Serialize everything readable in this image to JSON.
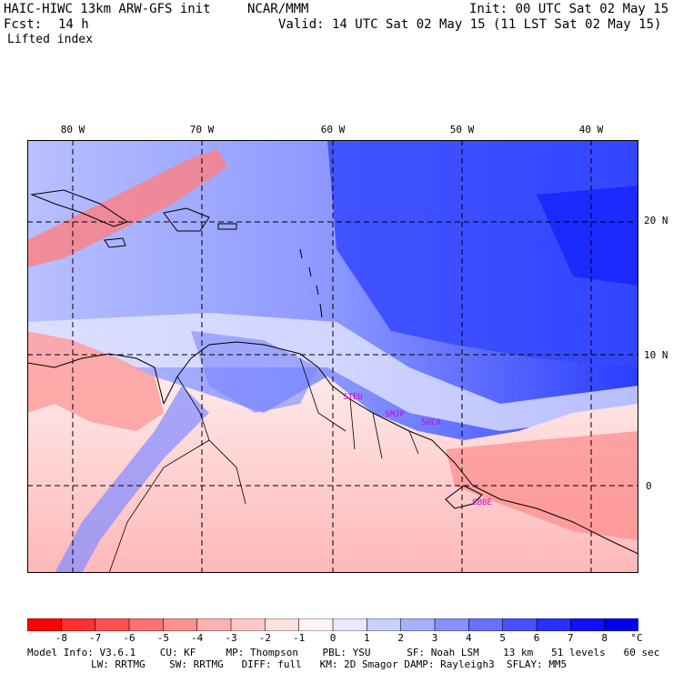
{
  "header": {
    "model_title": "HAIC-HIWC 13km ARW-GFS init",
    "center": "NCAR/MMM",
    "init": "Init: 00 UTC Sat 02 May 15",
    "fcst_label": "Fcst:",
    "fcst_value": "14 h",
    "valid": "Valid: 14 UTC Sat 02 May 15 (11 LST Sat 02 May 15)",
    "field": "Lifted index"
  },
  "map": {
    "lon_labels": [
      "80 W",
      "70 W",
      "60 W",
      "50 W",
      "40 W"
    ],
    "lat_labels": [
      "20 N",
      "10 N",
      "0"
    ],
    "cities": [
      "STEU",
      "SMJP",
      "SOCA",
      "SBBE"
    ]
  },
  "legend": {
    "ticks": [
      "-8",
      "-7",
      "-6",
      "-5",
      "-4",
      "-3",
      "-2",
      "-1",
      "0",
      "1",
      "2",
      "3",
      "4",
      "5",
      "6",
      "7",
      "8"
    ],
    "unit": "°C",
    "colors": [
      "#ff0000",
      "#ff3030",
      "#ff5050",
      "#ff7070",
      "#ff9090",
      "#ffb0b0",
      "#ffc8c8",
      "#ffe0e0",
      "#fff4f4",
      "#e8e8ff",
      "#c8d0ff",
      "#a8b0ff",
      "#8890ff",
      "#6870ff",
      "#4850ff",
      "#2830ff",
      "#1010ff",
      "#0000f0"
    ]
  },
  "footer": {
    "line1": "Model Info: V3.6.1    CU: KF     MP: Thompson    PBL: YSU      SF: Noah LSM    13 km   51 levels   60 sec",
    "line2": "LW: RRTMG    SW: RRTMG   DIFF: full   KM: 2D Smagor DAMP: Rayleigh3  SFLAY: MM5"
  }
}
